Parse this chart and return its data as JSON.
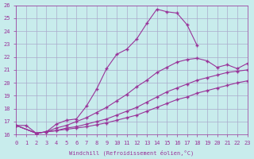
{
  "xlabel": "Windchill (Refroidissement éolien,°C)",
  "bg_color": "#c8ecec",
  "grid_color": "#aaaacc",
  "line_color": "#993399",
  "xlim": [
    0,
    23
  ],
  "ylim": [
    16,
    26
  ],
  "xticks": [
    0,
    1,
    2,
    3,
    4,
    5,
    6,
    7,
    8,
    9,
    10,
    11,
    12,
    13,
    14,
    15,
    16,
    17,
    18,
    19,
    20,
    21,
    22,
    23
  ],
  "yticks": [
    16,
    17,
    18,
    19,
    20,
    21,
    22,
    23,
    24,
    25,
    26
  ],
  "series": [
    {
      "x": [
        0,
        1,
        2,
        3,
        4,
        5,
        6,
        7,
        8,
        9,
        10,
        11,
        12,
        13,
        14,
        15,
        16,
        17,
        18
      ],
      "y": [
        16.7,
        16.7,
        16.1,
        16.2,
        16.8,
        17.1,
        17.2,
        18.2,
        19.5,
        21.1,
        22.2,
        22.6,
        23.4,
        24.6,
        25.7,
        25.5,
        25.4,
        24.5,
        22.9
      ]
    },
    {
      "x": [
        0,
        2,
        3,
        4,
        5,
        6,
        7,
        8,
        9,
        10,
        11,
        12,
        13,
        14,
        15,
        16,
        17,
        18,
        19,
        20,
        21,
        22,
        23
      ],
      "y": [
        16.7,
        16.1,
        16.2,
        16.5,
        16.7,
        17.0,
        17.3,
        17.7,
        18.1,
        18.6,
        19.1,
        19.7,
        20.2,
        20.8,
        21.2,
        21.6,
        21.8,
        21.9,
        21.7,
        21.2,
        21.4,
        21.1,
        21.5
      ]
    },
    {
      "x": [
        0,
        2,
        3,
        4,
        5,
        6,
        7,
        8,
        9,
        10,
        11,
        12,
        13,
        14,
        15,
        16,
        17,
        18,
        19,
        20,
        21,
        22,
        23
      ],
      "y": [
        16.7,
        16.1,
        16.2,
        16.3,
        16.5,
        16.6,
        16.8,
        17.0,
        17.2,
        17.5,
        17.8,
        18.1,
        18.5,
        18.9,
        19.3,
        19.6,
        19.9,
        20.2,
        20.4,
        20.6,
        20.8,
        20.9,
        21.0
      ]
    },
    {
      "x": [
        0,
        2,
        3,
        4,
        5,
        6,
        7,
        8,
        9,
        10,
        11,
        12,
        13,
        14,
        15,
        16,
        17,
        18,
        19,
        20,
        21,
        22,
        23
      ],
      "y": [
        16.7,
        16.1,
        16.2,
        16.3,
        16.4,
        16.5,
        16.6,
        16.75,
        16.9,
        17.1,
        17.3,
        17.5,
        17.8,
        18.1,
        18.4,
        18.7,
        18.9,
        19.2,
        19.4,
        19.6,
        19.8,
        20.0,
        20.15
      ]
    }
  ]
}
